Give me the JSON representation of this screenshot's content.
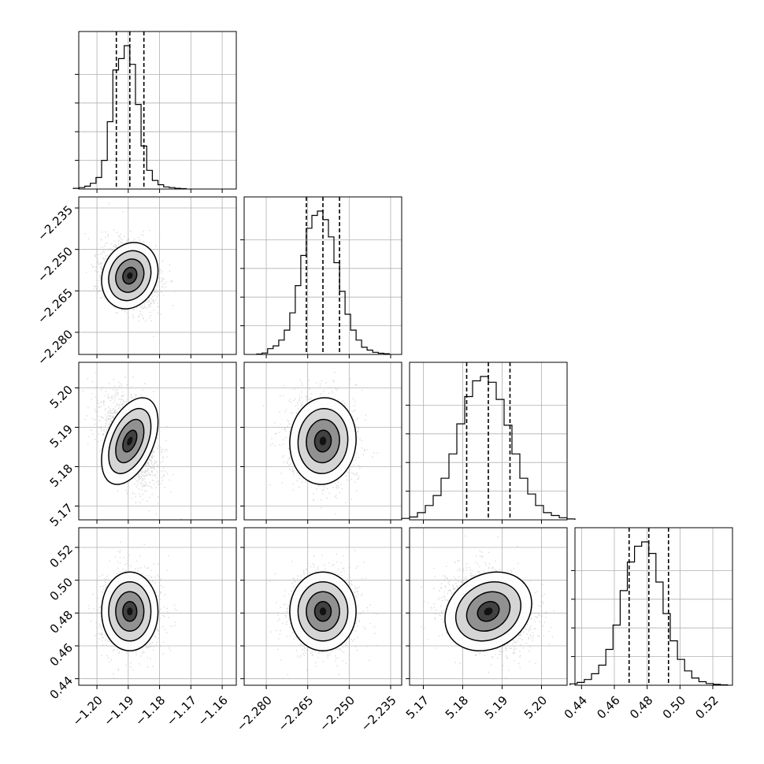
{
  "chart_data": {
    "type": "corner",
    "parameters": [
      {
        "key": "p0",
        "center": -1.1895,
        "sigma": 0.0045,
        "range": [
          -1.2058,
          -1.1555
        ],
        "ticks": [
          -1.2,
          -1.19,
          -1.18,
          -1.17,
          -1.16
        ],
        "tick_labels": [
          "−1.20",
          "−1.19",
          "−1.18",
          "−1.17",
          "−1.16"
        ],
        "quantiles": [
          -1.1938,
          -1.1895,
          -1.185
        ],
        "hist_bins": [
          0.005,
          0.01,
          0.02,
          0.04,
          0.08,
          0.2,
          0.47,
          0.83,
          0.91,
          1.0,
          0.87,
          0.59,
          0.3,
          0.13,
          0.06,
          0.03,
          0.015,
          0.01,
          0.005,
          0.003
        ]
      },
      {
        "key": "p1",
        "center": -2.2595,
        "sigma": 0.006,
        "range": [
          -2.288,
          -2.231
        ],
        "ticks": [
          -2.28,
          -2.265,
          -2.25,
          -2.235
        ],
        "tick_labels": [
          "−2.280",
          "−2.265",
          "−2.250",
          "−2.235"
        ],
        "quantiles": [
          -2.2655,
          -2.2595,
          -2.2535
        ],
        "hist_bins": [
          0.003,
          0.01,
          0.04,
          0.06,
          0.1,
          0.17,
          0.29,
          0.48,
          0.69,
          0.88,
          0.97,
          1.0,
          0.94,
          0.82,
          0.64,
          0.44,
          0.28,
          0.17,
          0.1,
          0.05,
          0.03,
          0.015,
          0.008,
          0.005
        ]
      },
      {
        "key": "p2",
        "center": 5.1865,
        "sigma": 0.0055,
        "range": [
          5.1665,
          5.2065
        ],
        "ticks": [
          5.17,
          5.18,
          5.19,
          5.2
        ],
        "tick_labels": [
          "5.17",
          "5.18",
          "5.19",
          "5.20"
        ],
        "quantiles": [
          5.181,
          5.1865,
          5.192
        ],
        "hist_bins": [
          0.01,
          0.02,
          0.05,
          0.1,
          0.17,
          0.29,
          0.46,
          0.67,
          0.86,
          0.97,
          1.0,
          0.96,
          0.84,
          0.66,
          0.46,
          0.29,
          0.18,
          0.1,
          0.05,
          0.03,
          0.015,
          0.006
        ]
      },
      {
        "key": "p3",
        "center": 0.481,
        "sigma": 0.012,
        "range": [
          0.436,
          0.532
        ],
        "ticks": [
          0.44,
          0.46,
          0.48,
          0.5,
          0.52
        ],
        "tick_labels": [
          "0.44",
          "0.46",
          "0.48",
          "0.50",
          "0.52"
        ],
        "quantiles": [
          0.469,
          0.481,
          0.493
        ],
        "hist_bins": [
          0.01,
          0.02,
          0.04,
          0.08,
          0.14,
          0.25,
          0.42,
          0.66,
          0.86,
          0.97,
          1.0,
          0.92,
          0.72,
          0.5,
          0.31,
          0.18,
          0.1,
          0.05,
          0.025,
          0.012,
          0.006,
          0.003
        ]
      }
    ],
    "correlations": {
      "p1_p0": 0.15,
      "p2_p0": 0.45,
      "p2_p1": 0.05,
      "p3_p0": 0.0,
      "p3_p1": 0.0,
      "p3_p2": 0.2
    },
    "contour_levels_sigma": [
      0.5,
      1.0,
      1.5,
      2.0
    ],
    "grid": true,
    "colors": {
      "line": "#000000",
      "grid": "#b0b0b0",
      "scatter": "#bdbdbd",
      "density": "#000000"
    }
  }
}
